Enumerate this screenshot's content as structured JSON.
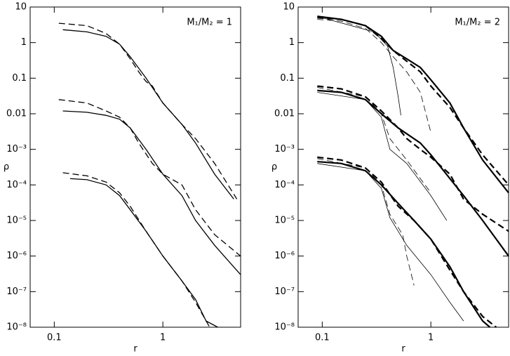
{
  "chart_data": [
    {
      "type": "line",
      "annotation": "M₁/M₂ = 1",
      "xlabel": "r",
      "ylabel": "ρ",
      "xscale": "log",
      "yscale": "log",
      "xlim": [
        0.06,
        5.2
      ],
      "ylim": [
        1e-08,
        10
      ],
      "xticks": [
        0.1,
        1
      ],
      "yticks": [
        10,
        1,
        0.1,
        0.01,
        {
          "value": 0.001,
          "label": "10⁻³"
        },
        {
          "value": 0.0001,
          "label": "10⁻⁴"
        },
        {
          "value": 1e-05,
          "label": "10⁻⁵"
        },
        {
          "value": 1e-06,
          "label": "10⁻⁶"
        },
        {
          "value": 1e-07,
          "label": "10⁻⁷"
        },
        {
          "value": 1e-08,
          "label": "10⁻⁸"
        }
      ],
      "series": [
        {
          "color": "#000",
          "style": "solid",
          "linewidth": 1.3,
          "x": [
            0.12,
            0.2,
            0.3,
            0.4,
            0.5,
            0.7,
            1,
            1.5,
            2,
            3,
            4.5
          ],
          "values": [
            2.3,
            2.0,
            1.5,
            0.9,
            0.4,
            0.1,
            0.02,
            0.005,
            0.0015,
            0.0002,
            4e-05
          ]
        },
        {
          "color": "#000",
          "style": "dashed",
          "linewidth": 1.3,
          "x": [
            0.11,
            0.2,
            0.3,
            0.4,
            0.5,
            0.6,
            0.7,
            0.8,
            1,
            1.5,
            2,
            3,
            4.8
          ],
          "values": [
            3.5,
            3.0,
            1.8,
            0.9,
            0.35,
            0.15,
            0.08,
            0.06,
            0.02,
            0.005,
            0.002,
            0.0004,
            4e-05
          ]
        },
        {
          "color": "#000",
          "style": "solid",
          "linewidth": 1.3,
          "x": [
            0.12,
            0.2,
            0.3,
            0.4,
            0.5,
            0.7,
            1,
            1.5,
            2,
            3,
            5.2
          ],
          "values": [
            0.012,
            0.011,
            0.009,
            0.007,
            0.004,
            0.001,
            0.0002,
            5e-05,
            1e-05,
            2e-06,
            3e-07
          ]
        },
        {
          "color": "#000",
          "style": "dashed",
          "linewidth": 1.3,
          "x": [
            0.11,
            0.2,
            0.3,
            0.4,
            0.5,
            0.6,
            0.8,
            1,
            1.5,
            2,
            3,
            5.2
          ],
          "values": [
            0.025,
            0.02,
            0.012,
            0.008,
            0.004,
            0.0015,
            0.0004,
            0.0002,
            0.0001,
            2e-05,
            4e-06,
            1e-06
          ]
        },
        {
          "color": "#000",
          "style": "solid",
          "linewidth": 1.3,
          "x": [
            0.14,
            0.2,
            0.3,
            0.4,
            0.5,
            0.7,
            1,
            1.5,
            2,
            2.5,
            3.2
          ],
          "values": [
            0.00015,
            0.00014,
            0.0001,
            5e-05,
            2e-05,
            5e-06,
            1e-06,
            2e-07,
            6e-08,
            1.5e-08,
            1e-08
          ]
        },
        {
          "color": "#000",
          "style": "dashed",
          "linewidth": 1.3,
          "x": [
            0.12,
            0.2,
            0.3,
            0.4,
            0.5,
            0.7,
            1,
            1.5,
            2,
            2.7
          ],
          "values": [
            0.00022,
            0.00018,
            0.00012,
            6e-05,
            2.5e-05,
            5e-06,
            1e-06,
            2e-07,
            5e-08,
            1e-08
          ]
        }
      ]
    },
    {
      "type": "line",
      "annotation": "M₁/M₂ = 2",
      "xlabel": "r",
      "ylabel": "ρ",
      "xscale": "log",
      "yscale": "log",
      "xlim": [
        0.06,
        5.2
      ],
      "ylim": [
        1e-08,
        10
      ],
      "xticks": [
        0.1,
        1
      ],
      "yticks": [
        10,
        1,
        0.1,
        0.01,
        {
          "value": 0.001,
          "label": "10⁻³"
        },
        {
          "value": 0.0001,
          "label": "10⁻⁴"
        },
        {
          "value": 1e-05,
          "label": "10⁻⁵"
        },
        {
          "value": 1e-06,
          "label": "10⁻⁶"
        },
        {
          "value": 1e-07,
          "label": "10⁻⁷"
        },
        {
          "value": 1e-08,
          "label": "10⁻⁸"
        }
      ],
      "series": [
        {
          "color": "#000",
          "style": "solid",
          "linewidth": 2.2,
          "x": [
            0.09,
            0.15,
            0.25,
            0.35,
            0.45,
            0.6,
            0.8,
            1,
            1.5,
            2,
            3,
            5.2
          ],
          "values": [
            5.5,
            4.5,
            3,
            1.5,
            0.6,
            0.35,
            0.2,
            0.09,
            0.02,
            0.004,
            0.0005,
            6e-05
          ]
        },
        {
          "color": "#000",
          "style": "dashed",
          "linewidth": 2.2,
          "x": [
            0.09,
            0.15,
            0.25,
            0.35,
            0.45,
            0.6,
            0.8,
            1,
            1.5,
            2,
            3,
            5.2
          ],
          "values": [
            5,
            4.5,
            3,
            1.3,
            0.6,
            0.3,
            0.15,
            0.06,
            0.015,
            0.004,
            0.0007,
            0.0001
          ]
        },
        {
          "color": "#000",
          "style": "solid",
          "linewidth": 0.8,
          "x": [
            0.1,
            0.3,
            0.4,
            0.45,
            0.5,
            0.53
          ],
          "values": [
            5,
            2,
            0.8,
            0.2,
            0.03,
            0.009
          ]
        },
        {
          "color": "#000",
          "style": "dashed",
          "linewidth": 0.8,
          "x": [
            0.09,
            0.15,
            0.25,
            0.35,
            0.45,
            0.6,
            0.8,
            1
          ],
          "values": [
            4.5,
            4,
            2.5,
            1,
            0.4,
            0.15,
            0.04,
            0.003
          ]
        },
        {
          "color": "#000",
          "style": "solid",
          "linewidth": 2.2,
          "x": [
            0.09,
            0.15,
            0.25,
            0.35,
            0.5,
            0.8,
            1,
            1.5,
            2,
            3,
            5.2
          ],
          "values": [
            0.045,
            0.04,
            0.025,
            0.01,
            0.004,
            0.0015,
            0.0007,
            0.00015,
            5e-05,
            1e-05,
            1e-06
          ]
        },
        {
          "color": "#000",
          "style": "dashed",
          "linewidth": 2.2,
          "x": [
            0.09,
            0.15,
            0.25,
            0.35,
            0.5,
            0.6,
            0.8,
            1,
            1.5,
            2,
            3,
            5.2
          ],
          "values": [
            0.06,
            0.05,
            0.03,
            0.012,
            0.004,
            0.002,
            0.001,
            0.0006,
            0.0002,
            4e-05,
            1.5e-05,
            5e-06
          ]
        },
        {
          "color": "#000",
          "style": "solid",
          "linewidth": 0.8,
          "x": [
            0.09,
            0.25,
            0.35,
            0.42,
            0.6,
            1,
            1.4
          ],
          "values": [
            0.04,
            0.025,
            0.008,
            0.001,
            0.0004,
            5e-05,
            1e-05
          ]
        },
        {
          "color": "#000",
          "style": "dashed",
          "linewidth": 0.8,
          "x": [
            0.09,
            0.25,
            0.35,
            0.42,
            0.6,
            0.8,
            1
          ],
          "values": [
            0.055,
            0.03,
            0.01,
            0.002,
            0.0005,
            0.00015,
            6e-05
          ]
        },
        {
          "color": "#000",
          "style": "solid",
          "linewidth": 2.2,
          "x": [
            0.09,
            0.15,
            0.25,
            0.35,
            0.5,
            0.7,
            1,
            1.5,
            2,
            3,
            3.5
          ],
          "values": [
            0.00045,
            0.0004,
            0.00025,
            0.0001,
            3e-05,
            1e-05,
            3e-06,
            5e-07,
            1e-07,
            1.5e-08,
            1e-08
          ]
        },
        {
          "color": "#000",
          "style": "dashed",
          "linewidth": 2.2,
          "x": [
            0.09,
            0.15,
            0.25,
            0.35,
            0.5,
            0.7,
            1,
            1.5,
            2,
            3,
            4
          ],
          "values": [
            0.0006,
            0.0005,
            0.0003,
            0.00012,
            2.5e-05,
            1e-05,
            3e-06,
            4e-07,
            1e-07,
            2e-08,
            1e-08
          ]
        },
        {
          "color": "#000",
          "style": "solid",
          "linewidth": 0.8,
          "x": [
            0.09,
            0.25,
            0.35,
            0.42,
            0.6,
            1,
            1.5,
            2
          ],
          "values": [
            0.0004,
            0.00025,
            8e-05,
            1.2e-05,
            2e-06,
            3e-07,
            5e-08,
            1.5e-08
          ]
        },
        {
          "color": "#000",
          "style": "dashed",
          "linewidth": 0.8,
          "x": [
            0.09,
            0.25,
            0.35,
            0.42,
            0.55,
            0.6,
            0.7
          ],
          "values": [
            0.00055,
            0.0003,
            0.0001,
            1.5e-05,
            4e-06,
            1e-06,
            1.5e-07
          ]
        }
      ]
    }
  ]
}
